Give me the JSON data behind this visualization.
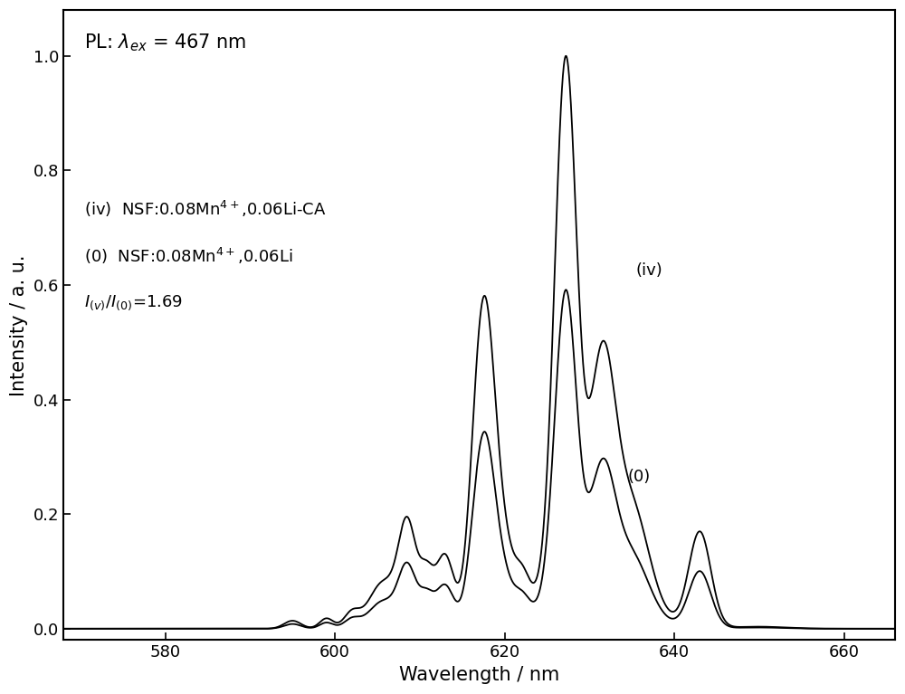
{
  "xlabel": "Wavelength / nm",
  "ylabel": "Intensity / a. u.",
  "xlim": [
    568,
    666
  ],
  "ylim": [
    -0.02,
    1.08
  ],
  "xticks": [
    580,
    600,
    620,
    640,
    660
  ],
  "yticks": [
    0.0,
    0.2,
    0.4,
    0.6,
    0.8,
    1.0
  ],
  "line_color": "#000000",
  "background_color": "#ffffff"
}
